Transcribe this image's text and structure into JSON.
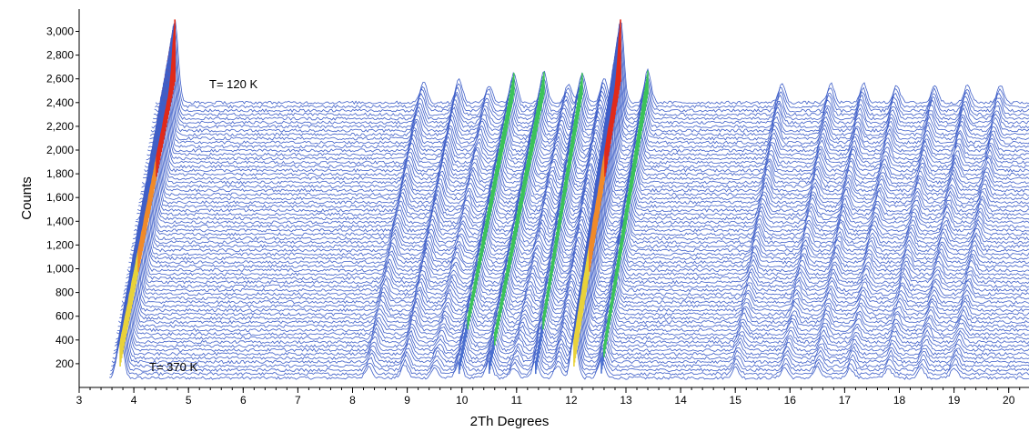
{
  "chart_data": {
    "type": "line",
    "subtype": "waterfall",
    "xlabel": "2Th Degrees",
    "ylabel": "Counts",
    "xlim": [
      3,
      20.4
    ],
    "ylim": [
      0,
      3150
    ],
    "x_ticks": [
      "3",
      "4",
      "5",
      "6",
      "7",
      "8",
      "9",
      "10",
      "11",
      "12",
      "13",
      "14",
      "15",
      "16",
      "17",
      "18",
      "19",
      "20"
    ],
    "y_ticks": [
      "200",
      "400",
      "600",
      "800",
      "1,000",
      "1,200",
      "1,400",
      "1,600",
      "1,800",
      "2,000",
      "2,200",
      "2,400",
      "2,600",
      "2,800",
      "3,000"
    ],
    "annotations": [
      "T= 120 K",
      "T= 370 K"
    ],
    "series_count": 70,
    "temperature_range_K": [
      370,
      120
    ],
    "baseline_offset_counts": [
      80,
      2400
    ],
    "peaks": [
      {
        "x": 3.75,
        "height": 700
      },
      {
        "x": 8.3,
        "height": 180
      },
      {
        "x": 8.95,
        "height": 200
      },
      {
        "x": 9.5,
        "height": 150
      },
      {
        "x": 9.95,
        "height": 250
      },
      {
        "x": 10.5,
        "height": 260
      },
      {
        "x": 10.95,
        "height": 160
      },
      {
        "x": 11.35,
        "height": 250
      },
      {
        "x": 11.75,
        "height": 200
      },
      {
        "x": 12.05,
        "height": 700
      },
      {
        "x": 12.55,
        "height": 270
      },
      {
        "x": 15.0,
        "height": 160
      },
      {
        "x": 15.9,
        "height": 160
      },
      {
        "x": 16.5,
        "height": 160
      },
      {
        "x": 17.1,
        "height": 150
      },
      {
        "x": 17.8,
        "height": 150
      },
      {
        "x": 18.4,
        "height": 150
      },
      {
        "x": 19.0,
        "height": 150
      }
    ],
    "grid": false,
    "legend": "none"
  }
}
